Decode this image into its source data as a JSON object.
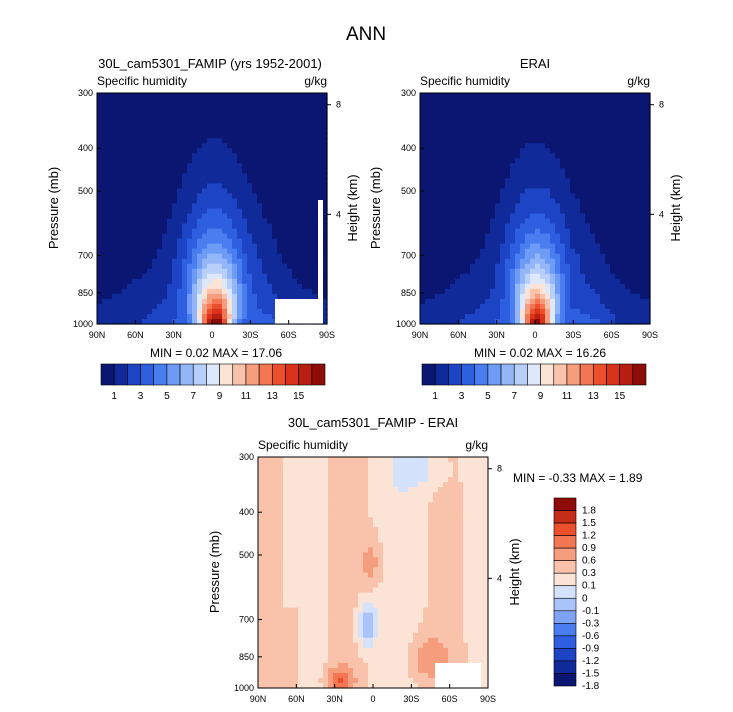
{
  "figure_title": "ANN",
  "colormap_full": [
    "#0a1672",
    "#102a9a",
    "#1c44c4",
    "#2d5fe0",
    "#4a7ef0",
    "#6d9bf5",
    "#92b6f8",
    "#b8cff9",
    "#dde8fb",
    "#fbe3d6",
    "#f9c3ab",
    "#f69d7e",
    "#f27752",
    "#ec4f2c",
    "#d9331c",
    "#b81f12",
    "#8e0c08"
  ],
  "colormap_diff": [
    "#0a1672",
    "#102a9a",
    "#1c44c4",
    "#2d5fe0",
    "#4a7ef0",
    "#7ea3f5",
    "#aac3f8",
    "#d4e3fb",
    "#fbe3d6",
    "#f9c3ab",
    "#f69d7e",
    "#f27752",
    "#ec4f2c",
    "#c42d18",
    "#8e0c08"
  ],
  "chart_data": [
    {
      "type": "heatmap",
      "title": "30L_cam5301_FAMIP (yrs 1952-2001)",
      "left_label": "Specific humidity",
      "right_label": "g/kg",
      "ylabel": "Pressure (mb)",
      "y2label": "Height (km)",
      "x_ticks": [
        "90N",
        "60N",
        "30N",
        "0",
        "30S",
        "60S",
        "90S"
      ],
      "y_ticks": [
        "300",
        "400",
        "500",
        "700",
        "850",
        "1000"
      ],
      "y2_ticks": [
        "8",
        "4"
      ],
      "stats": "MIN =  0.02  MAX = 17.06",
      "colorbar_labels": [
        "1",
        "3",
        "5",
        "7",
        "9",
        "11",
        "13",
        "15"
      ],
      "peak": 17.06,
      "core_width": 12,
      "tilt": -0.5
    },
    {
      "type": "heatmap",
      "title": "ERAI",
      "left_label": "Specific humidity",
      "right_label": "g/kg",
      "ylabel": "Pressure (mb)",
      "y2label": "Height (km)",
      "x_ticks": [
        "90N",
        "60N",
        "30N",
        "0",
        "30S",
        "60S",
        "90S"
      ],
      "y_ticks": [
        "300",
        "400",
        "500",
        "700",
        "850",
        "1000"
      ],
      "y2_ticks": [
        "8",
        "4"
      ],
      "stats": "MIN =  0.02  MAX = 16.26",
      "colorbar_labels": [
        "1",
        "3",
        "5",
        "7",
        "9",
        "11",
        "13",
        "15"
      ],
      "peak": 16.26,
      "core_width": 11,
      "tilt": -0.3
    },
    {
      "type": "heatmap",
      "title": "30L_cam5301_FAMIP - ERAI",
      "left_label": "Specific humidity",
      "right_label": "g/kg",
      "ylabel": "Pressure (mb)",
      "y2label": "Height (km)",
      "x_ticks": [
        "90N",
        "60N",
        "30N",
        "0",
        "30S",
        "60S",
        "90S"
      ],
      "y_ticks": [
        "300",
        "400",
        "500",
        "700",
        "850",
        "1000"
      ],
      "y2_ticks": [
        "8",
        "4"
      ],
      "stats": "MIN = -0.33  MAX =  1.89",
      "colorbar_labels": [
        "1.8",
        "1.5",
        "1.2",
        "0.9",
        "0.6",
        "0.3",
        "0.1",
        "0",
        "-0.1",
        "-0.3",
        "-0.6",
        "-0.9",
        "-1.2",
        "-1.5",
        "-1.8"
      ]
    }
  ]
}
